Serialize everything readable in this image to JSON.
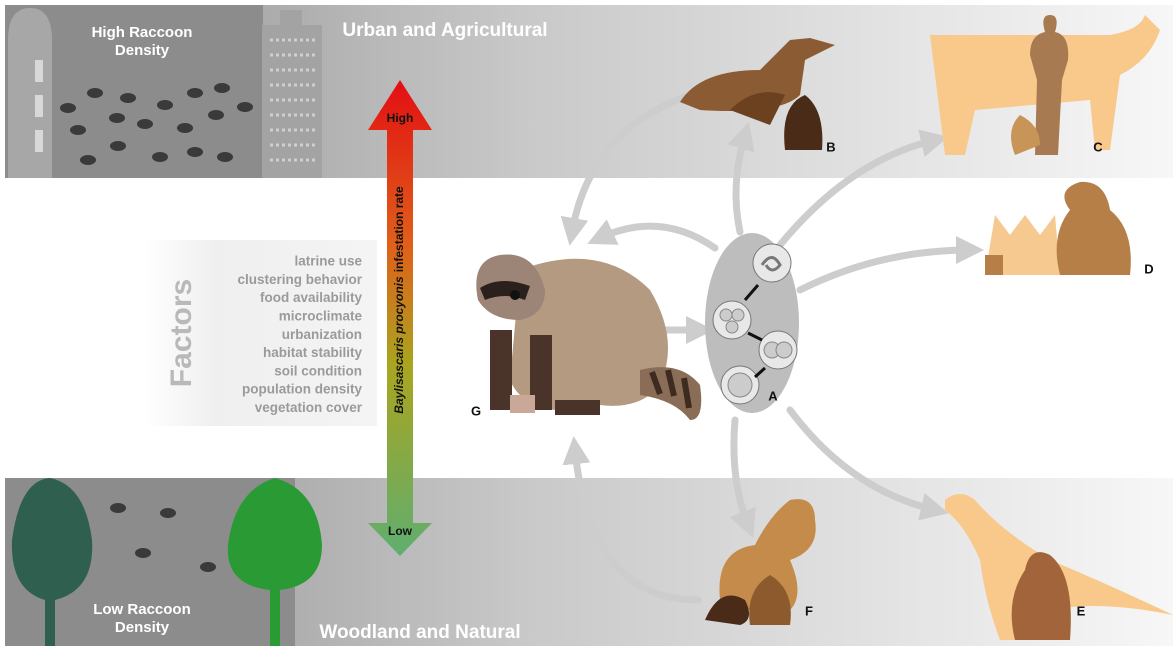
{
  "bands": {
    "top": {
      "title": "Urban and Agricultural",
      "density_lines": [
        "High Raccoon",
        "Density"
      ]
    },
    "bottom": {
      "title": "Woodland and Natural",
      "density_lines": [
        "Low Raccoon",
        "Density"
      ]
    }
  },
  "factors": {
    "heading": "Factors",
    "items": [
      "latrine use",
      "clustering behavior",
      "food availability",
      "microclimate",
      "urbanization",
      "habitat stability",
      "soil condition",
      "population density",
      "vegetation cover"
    ]
  },
  "gradient_arrow": {
    "top_label": "High",
    "bottom_label": "Low",
    "label_species": "Baylisascaris procyonis",
    "label_rest": "infestation rate"
  },
  "panels": {
    "A": "A",
    "B": "B",
    "C": "C",
    "D": "D",
    "E": "E",
    "F": "F",
    "G": "G"
  }
}
